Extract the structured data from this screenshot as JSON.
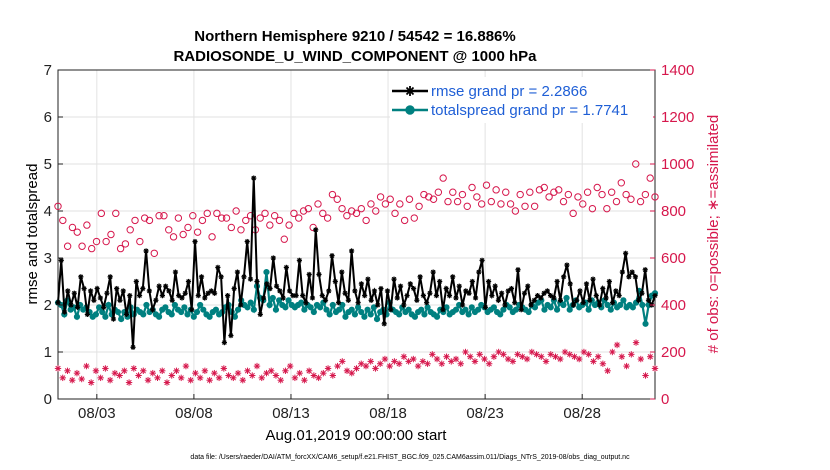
{
  "chart_data": {
    "type": "line",
    "title_line1": "Northern Hemisphere 9210 / 54542 = 16.886%",
    "title_line2": "RADIOSONDE_U_WIND_COMPONENT @ 1000 hPa",
    "xlabel": "Aug.01,2019 00:00:00 start",
    "ylabel_left": "rmse and totalspread",
    "ylabel_right": "# of obs: o=possible; ∗=assimilated",
    "footer": "data file: /Users/raeder/DAI/ATM_forcXX/CAM6_setup/f.e21.FHIST_BGC.f09_025.CAM6assim.011/Diags_NTrS_2019-08/obs_diag_output.nc",
    "x_tick_labels": [
      "08/03",
      "08/08",
      "08/13",
      "08/18",
      "08/23",
      "08/28"
    ],
    "x_tick_days": [
      3,
      8,
      13,
      18,
      23,
      28
    ],
    "xlim": [
      1.0,
      31.75
    ],
    "ylim_left": [
      0,
      7
    ],
    "yticks_left": [
      "0",
      "1",
      "2",
      "3",
      "4",
      "5",
      "6",
      "7"
    ],
    "ylim_right": [
      0,
      1400
    ],
    "yticks_right": [
      "0",
      "200",
      "400",
      "600",
      "800",
      "1000",
      "1200",
      "1400"
    ],
    "colors": {
      "rmse": "#000000",
      "spread": "#008080",
      "obs": "#D6174C",
      "legend_text": "#1f5fd6"
    },
    "legend": [
      {
        "label": "rmse grand pr = 2.2866",
        "series": "rmse"
      },
      {
        "label": "totalspread grand pr = 1.7741",
        "series": "spread"
      }
    ],
    "series_rmse": [
      2.05,
      2.95,
      1.85,
      2.3,
      2.0,
      2.25,
      1.95,
      2.6,
      2.35,
      1.8,
      2.3,
      2.1,
      2.35,
      2.15,
      1.95,
      2.25,
      2.6,
      1.7,
      2.35,
      2.1,
      2.3,
      1.8,
      2.2,
      1.1,
      2.5,
      2.2,
      2.35,
      3.15,
      2.3,
      1.9,
      2.1,
      2.4,
      2.2,
      2.4,
      2.3,
      2.1,
      2.7,
      2.2,
      2.15,
      2.25,
      2.5,
      1.9,
      3.35,
      2.2,
      2.6,
      2.15,
      2.25,
      2.3,
      2.25,
      2.8,
      2.6,
      1.2,
      2.2,
      1.35,
      2.35,
      2.7,
      2.0,
      2.6,
      3.35,
      2.55,
      4.7,
      2.5,
      1.8,
      2.15,
      2.45,
      2.35,
      3.0,
      2.4,
      2.3,
      2.15,
      2.8,
      2.3,
      2.2,
      2.2,
      2.95,
      2.2,
      2.05,
      2.65,
      2.15,
      3.6,
      2.65,
      2.2,
      2.1,
      2.3,
      3.05,
      2.5,
      2.05,
      2.7,
      2.25,
      2.1,
      3.15,
      2.3,
      2.05,
      2.45,
      2.2,
      2.55,
      2.1,
      2.3,
      2.0,
      2.35,
      1.6,
      2.3,
      1.9,
      2.55,
      2.15,
      2.4,
      2.0,
      2.2,
      2.45,
      2.35,
      2.1,
      2.6,
      2.2,
      2.05,
      2.25,
      2.7,
      2.2,
      2.5,
      1.9,
      2.35,
      2.2,
      2.6,
      2.15,
      2.4,
      2.0,
      2.3,
      2.25,
      2.5,
      2.15,
      2.7,
      2.95,
      1.95,
      2.5,
      2.2,
      2.4,
      2.1,
      2.25,
      2.0,
      2.3,
      2.35,
      2.05,
      2.75,
      1.9,
      2.25,
      2.4,
      2.0,
      2.1,
      2.2,
      2.15,
      2.25,
      2.3,
      2.2,
      2.15,
      2.5,
      2.1,
      2.6,
      2.85,
      2.45,
      2.0,
      2.1,
      2.3,
      2.05,
      2.45,
      2.1,
      2.55,
      2.2,
      2.0,
      2.35,
      2.15,
      2.5,
      2.05,
      2.3,
      2.2,
      2.7,
      3.1,
      2.6,
      2.7,
      2.6,
      2.1,
      2.25,
      2.75,
      2.1,
      2.0,
      2.2
    ],
    "series_spread": [
      2.05,
      2.0,
      1.8,
      2.1,
      1.9,
      1.95,
      1.75,
      2.0,
      1.9,
      1.95,
      1.85,
      1.75,
      1.8,
      1.95,
      1.85,
      1.75,
      2.0,
      1.8,
      1.9,
      1.85,
      1.7,
      1.85,
      1.75,
      1.95,
      1.8,
      1.9,
      1.85,
      1.8,
      2.0,
      1.85,
      1.9,
      1.8,
      1.75,
      1.9,
      1.95,
      1.85,
      1.8,
      2.0,
      1.9,
      1.85,
      1.95,
      1.8,
      1.9,
      1.75,
      1.85,
      2.0,
      1.9,
      1.8,
      1.75,
      1.85,
      1.9,
      1.8,
      1.85,
      1.95,
      2.0,
      1.85,
      1.75,
      1.9,
      2.1,
      2.0,
      1.95,
      2.05,
      1.9,
      2.4,
      2.15,
      2.1,
      2.7,
      2.0,
      2.15,
      1.9,
      2.1,
      2.0,
      1.95,
      2.1,
      2.0,
      1.95,
      2.0,
      2.05,
      1.9,
      2.0,
      1.95,
      1.85,
      2.0,
      1.95,
      2.05,
      1.9,
      1.8,
      2.0,
      1.85,
      1.9,
      2.0,
      1.75,
      1.85,
      1.9,
      1.8,
      1.95,
      1.85,
      1.75,
      1.9,
      1.8,
      1.95,
      1.7,
      1.85,
      1.9,
      1.8,
      2.05,
      1.9,
      1.85,
      1.8,
      1.95,
      1.85,
      1.9,
      1.8,
      1.75,
      1.85,
      1.9,
      1.8,
      1.95,
      1.85,
      1.8,
      1.75,
      1.9,
      1.85,
      1.95,
      1.8,
      1.85,
      1.9,
      2.0,
      1.85,
      1.9,
      1.8,
      1.95,
      1.85,
      1.9,
      2.0,
      1.95,
      1.85,
      1.9,
      1.95,
      1.85,
      1.8,
      1.9,
      2.0,
      1.95,
      1.85,
      1.9,
      2.0,
      1.95,
      1.9,
      1.85,
      2.0,
      1.95,
      2.05,
      2.1,
      1.9,
      2.0,
      1.95,
      2.1,
      1.9,
      2.05,
      2.0,
      2.15,
      1.9,
      2.0,
      2.1,
      1.95,
      2.0,
      2.05,
      1.9,
      2.1,
      2.0,
      2.05,
      1.95,
      2.1,
      2.0,
      1.9,
      2.05,
      1.95,
      2.0,
      2.1,
      1.95,
      2.0,
      1.95,
      2.05,
      2.3,
      2.0,
      1.6,
      2.0,
      2.2,
      2.25
    ],
    "series_possible": [
      820,
      760,
      650,
      730,
      710,
      650,
      740,
      640,
      670,
      790,
      670,
      700,
      790,
      640,
      660,
      720,
      760,
      670,
      770,
      760,
      620,
      780,
      780,
      720,
      690,
      770,
      700,
      730,
      780,
      710,
      760,
      790,
      690,
      790,
      770,
      770,
      730,
      800,
      720,
      760,
      780,
      720,
      770,
      790,
      740,
      780,
      760,
      680,
      740,
      790,
      770,
      800,
      810,
      730,
      830,
      790,
      770,
      870,
      850,
      810,
      780,
      800,
      790,
      810,
      760,
      830,
      800,
      860,
      830,
      850,
      790,
      830,
      760,
      850,
      770,
      820,
      870,
      860,
      850,
      880,
      940,
      840,
      880,
      840,
      870,
      820,
      900,
      860,
      830,
      910,
      840,
      890,
      830,
      880,
      830,
      800,
      870,
      820,
      880,
      820,
      890,
      900,
      860,
      880,
      890,
      840,
      870,
      790,
      860,
      830,
      880,
      810,
      900,
      870,
      810,
      880,
      840,
      920,
      870,
      850,
      1000,
      840,
      870,
      940,
      860
    ],
    "series_assimilated": [
      130,
      90,
      120,
      80,
      110,
      85,
      140,
      70,
      120,
      90,
      130,
      80,
      110,
      100,
      120,
      70,
      130,
      100,
      120,
      80,
      110,
      90,
      120,
      70,
      100,
      120,
      90,
      140,
      80,
      110,
      90,
      120,
      80,
      110,
      90,
      130,
      100,
      90,
      110,
      80,
      120,
      100,
      140,
      90,
      110,
      120,
      100,
      80,
      120,
      140,
      90,
      110,
      80,
      120,
      100,
      90,
      110,
      130,
      100,
      140,
      160,
      120,
      110,
      130,
      150,
      140,
      160,
      130,
      150,
      170,
      140,
      160,
      150,
      180,
      160,
      170,
      140,
      160,
      150,
      190,
      170,
      150,
      180,
      160,
      170,
      150,
      200,
      180,
      160,
      190,
      170,
      150,
      180,
      200,
      190,
      170,
      160,
      190,
      180,
      170,
      200,
      190,
      180,
      160,
      190,
      180,
      170,
      200,
      190,
      180,
      170,
      200,
      190,
      160,
      180,
      150,
      120,
      200,
      230,
      180,
      140,
      190,
      240,
      170,
      100,
      180,
      130
    ]
  }
}
